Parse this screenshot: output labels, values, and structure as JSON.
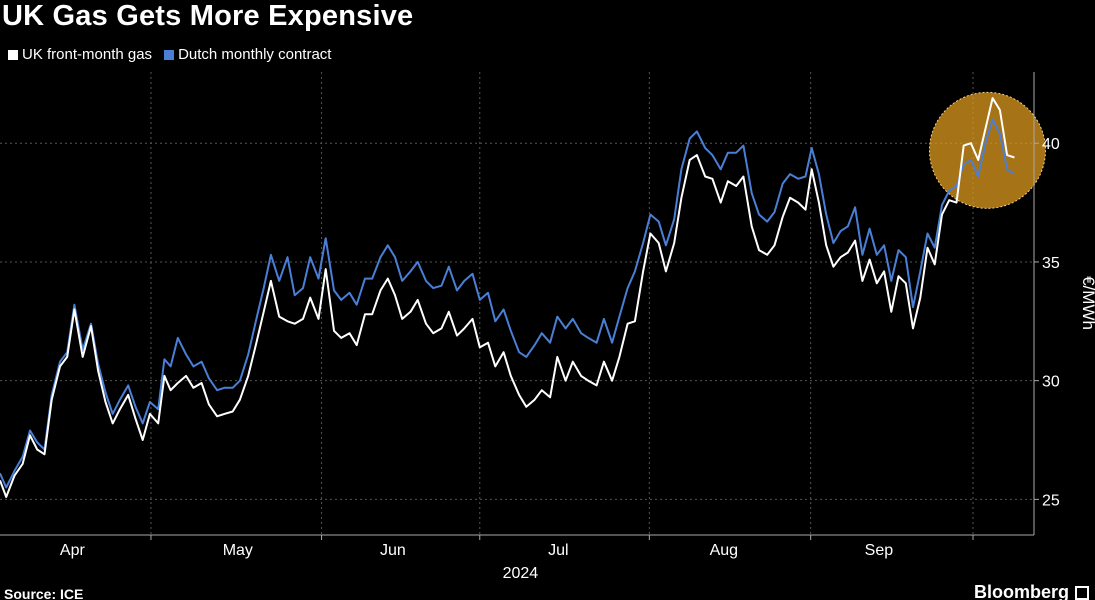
{
  "title": "UK Gas Gets More Expensive",
  "source": "Source: ICE",
  "brand": "Bloomberg",
  "colors": {
    "uk": "#ffffff",
    "dutch": "#4a7fd6",
    "highlight": "#e8a020",
    "grid": "#555555",
    "background": "#000000"
  },
  "chart_data": {
    "type": "line",
    "title": "UK Gas Gets More Expensive",
    "ylabel": "€/MWh",
    "xlabel": "2024",
    "ylim": [
      23.5,
      43
    ],
    "yticks": [
      25,
      30,
      35,
      40
    ],
    "xlim": [
      0,
      100
    ],
    "months": [
      {
        "label": "Apr",
        "pos": 7
      },
      {
        "label": "May",
        "pos": 23
      },
      {
        "label": "Jun",
        "pos": 38
      },
      {
        "label": "Jul",
        "pos": 54
      },
      {
        "label": "Aug",
        "pos": 70
      },
      {
        "label": "Sep",
        "pos": 85
      }
    ],
    "month_gridlines": [
      14.6,
      31.1,
      46.4,
      62.8,
      78.4,
      94.1
    ],
    "year_label": "2024",
    "legend_position": "top-left",
    "highlight": {
      "x": 95.5,
      "y": 39.7,
      "note": "highlighted recent surge"
    },
    "series": [
      {
        "name": "UK front-month gas",
        "color": "#ffffff",
        "points": [
          [
            0.0,
            25.8
          ],
          [
            0.6,
            25.1
          ],
          [
            1.4,
            26.0
          ],
          [
            2.2,
            26.5
          ],
          [
            2.9,
            27.7
          ],
          [
            3.6,
            27.1
          ],
          [
            4.3,
            26.9
          ],
          [
            5.0,
            29.2
          ],
          [
            5.8,
            30.6
          ],
          [
            6.5,
            31.0
          ],
          [
            7.2,
            33.0
          ],
          [
            8.0,
            31.0
          ],
          [
            8.8,
            32.3
          ],
          [
            9.5,
            30.4
          ],
          [
            10.2,
            29.1
          ],
          [
            10.9,
            28.2
          ],
          [
            11.6,
            28.8
          ],
          [
            12.4,
            29.4
          ],
          [
            13.1,
            28.4
          ],
          [
            13.8,
            27.5
          ],
          [
            14.5,
            28.6
          ],
          [
            15.3,
            28.2
          ],
          [
            15.9,
            30.2
          ],
          [
            16.5,
            29.6
          ],
          [
            17.2,
            29.9
          ],
          [
            18.0,
            30.2
          ],
          [
            18.7,
            29.7
          ],
          [
            19.5,
            29.9
          ],
          [
            20.2,
            29.0
          ],
          [
            21.0,
            28.5
          ],
          [
            21.7,
            28.6
          ],
          [
            22.5,
            28.7
          ],
          [
            23.2,
            29.2
          ],
          [
            24.0,
            30.2
          ],
          [
            24.8,
            31.6
          ],
          [
            25.5,
            32.9
          ],
          [
            26.2,
            34.2
          ],
          [
            27.0,
            32.7
          ],
          [
            27.8,
            32.5
          ],
          [
            28.5,
            32.4
          ],
          [
            29.3,
            32.6
          ],
          [
            30.0,
            33.5
          ],
          [
            30.8,
            32.6
          ],
          [
            31.5,
            34.7
          ],
          [
            32.3,
            32.1
          ],
          [
            33.0,
            31.8
          ],
          [
            33.8,
            32.0
          ],
          [
            34.5,
            31.5
          ],
          [
            35.3,
            32.8
          ],
          [
            36.0,
            32.8
          ],
          [
            36.8,
            33.8
          ],
          [
            37.5,
            34.3
          ],
          [
            38.2,
            33.6
          ],
          [
            38.9,
            32.6
          ],
          [
            39.7,
            32.9
          ],
          [
            40.4,
            33.4
          ],
          [
            41.2,
            32.4
          ],
          [
            41.9,
            32.0
          ],
          [
            42.7,
            32.2
          ],
          [
            43.4,
            32.9
          ],
          [
            44.2,
            31.9
          ],
          [
            44.9,
            32.2
          ],
          [
            45.7,
            32.6
          ],
          [
            46.4,
            31.4
          ],
          [
            47.2,
            31.6
          ],
          [
            47.9,
            30.6
          ],
          [
            48.7,
            31.2
          ],
          [
            49.4,
            30.2
          ],
          [
            50.2,
            29.4
          ],
          [
            50.9,
            28.9
          ],
          [
            51.7,
            29.2
          ],
          [
            52.4,
            29.6
          ],
          [
            53.2,
            29.3
          ],
          [
            53.9,
            31.0
          ],
          [
            54.7,
            30.0
          ],
          [
            55.4,
            30.8
          ],
          [
            56.2,
            30.2
          ],
          [
            56.9,
            30.0
          ],
          [
            57.7,
            29.8
          ],
          [
            58.4,
            30.8
          ],
          [
            59.2,
            30.0
          ],
          [
            59.9,
            31.0
          ],
          [
            60.7,
            32.4
          ],
          [
            61.4,
            32.5
          ],
          [
            62.2,
            34.6
          ],
          [
            62.9,
            36.2
          ],
          [
            63.7,
            35.8
          ],
          [
            64.4,
            34.6
          ],
          [
            65.2,
            35.8
          ],
          [
            65.9,
            37.7
          ],
          [
            66.7,
            39.3
          ],
          [
            67.4,
            39.5
          ],
          [
            68.2,
            38.6
          ],
          [
            68.9,
            38.5
          ],
          [
            69.7,
            37.5
          ],
          [
            70.4,
            38.4
          ],
          [
            71.2,
            38.2
          ],
          [
            71.9,
            38.6
          ],
          [
            72.7,
            36.5
          ],
          [
            73.4,
            35.5
          ],
          [
            74.2,
            35.3
          ],
          [
            74.9,
            35.7
          ],
          [
            75.7,
            36.9
          ],
          [
            76.4,
            37.7
          ],
          [
            77.2,
            37.5
          ],
          [
            77.9,
            37.2
          ],
          [
            78.5,
            38.9
          ],
          [
            79.2,
            37.5
          ],
          [
            79.9,
            35.7
          ],
          [
            80.6,
            34.8
          ],
          [
            81.3,
            35.2
          ],
          [
            82.0,
            35.4
          ],
          [
            82.7,
            35.9
          ],
          [
            83.4,
            34.2
          ],
          [
            84.1,
            35.1
          ],
          [
            84.8,
            34.1
          ],
          [
            85.5,
            34.6
          ],
          [
            86.2,
            32.9
          ],
          [
            86.9,
            34.4
          ],
          [
            87.6,
            34.1
          ],
          [
            88.3,
            32.2
          ],
          [
            89.0,
            33.5
          ],
          [
            89.7,
            35.6
          ],
          [
            90.4,
            34.9
          ],
          [
            91.1,
            37.0
          ],
          [
            91.8,
            37.6
          ],
          [
            92.5,
            37.5
          ],
          [
            93.2,
            39.9
          ],
          [
            93.9,
            40.0
          ],
          [
            94.6,
            39.3
          ],
          [
            95.3,
            40.6
          ],
          [
            96.0,
            41.9
          ],
          [
            96.7,
            41.4
          ],
          [
            97.4,
            39.5
          ],
          [
            98.1,
            39.4
          ]
        ]
      },
      {
        "name": "Dutch monthly contract",
        "color": "#4a7fd6",
        "points": [
          [
            0.0,
            26.1
          ],
          [
            0.6,
            25.5
          ],
          [
            1.4,
            26.2
          ],
          [
            2.2,
            26.8
          ],
          [
            2.9,
            27.9
          ],
          [
            3.6,
            27.4
          ],
          [
            4.3,
            27.1
          ],
          [
            5.0,
            29.4
          ],
          [
            5.8,
            30.8
          ],
          [
            6.5,
            31.2
          ],
          [
            7.2,
            33.2
          ],
          [
            8.0,
            31.3
          ],
          [
            8.8,
            32.4
          ],
          [
            9.5,
            30.7
          ],
          [
            10.2,
            29.5
          ],
          [
            10.9,
            28.6
          ],
          [
            11.6,
            29.2
          ],
          [
            12.4,
            29.8
          ],
          [
            13.1,
            28.9
          ],
          [
            13.8,
            28.2
          ],
          [
            14.5,
            29.1
          ],
          [
            15.3,
            28.8
          ],
          [
            15.9,
            30.9
          ],
          [
            16.5,
            30.6
          ],
          [
            17.2,
            31.8
          ],
          [
            18.0,
            31.1
          ],
          [
            18.7,
            30.6
          ],
          [
            19.5,
            30.8
          ],
          [
            20.2,
            30.1
          ],
          [
            21.0,
            29.6
          ],
          [
            21.7,
            29.7
          ],
          [
            22.5,
            29.7
          ],
          [
            23.2,
            30.0
          ],
          [
            24.0,
            31.1
          ],
          [
            24.8,
            32.6
          ],
          [
            25.5,
            33.9
          ],
          [
            26.2,
            35.3
          ],
          [
            27.0,
            34.2
          ],
          [
            27.8,
            35.2
          ],
          [
            28.5,
            33.6
          ],
          [
            29.3,
            33.9
          ],
          [
            30.0,
            35.2
          ],
          [
            30.8,
            34.3
          ],
          [
            31.5,
            36.0
          ],
          [
            32.3,
            33.8
          ],
          [
            33.0,
            33.4
          ],
          [
            33.8,
            33.7
          ],
          [
            34.5,
            33.2
          ],
          [
            35.3,
            34.3
          ],
          [
            36.0,
            34.3
          ],
          [
            36.8,
            35.2
          ],
          [
            37.5,
            35.7
          ],
          [
            38.2,
            35.2
          ],
          [
            38.9,
            34.2
          ],
          [
            39.7,
            34.6
          ],
          [
            40.4,
            35.0
          ],
          [
            41.2,
            34.2
          ],
          [
            41.9,
            33.9
          ],
          [
            42.7,
            34.0
          ],
          [
            43.4,
            34.8
          ],
          [
            44.2,
            33.8
          ],
          [
            44.9,
            34.2
          ],
          [
            45.7,
            34.5
          ],
          [
            46.4,
            33.4
          ],
          [
            47.2,
            33.7
          ],
          [
            47.9,
            32.5
          ],
          [
            48.7,
            33.0
          ],
          [
            49.4,
            32.1
          ],
          [
            50.2,
            31.2
          ],
          [
            50.9,
            31.0
          ],
          [
            51.7,
            31.5
          ],
          [
            52.4,
            32.0
          ],
          [
            53.2,
            31.6
          ],
          [
            53.9,
            32.7
          ],
          [
            54.7,
            32.2
          ],
          [
            55.4,
            32.6
          ],
          [
            56.2,
            32.0
          ],
          [
            56.9,
            31.8
          ],
          [
            57.7,
            31.6
          ],
          [
            58.4,
            32.6
          ],
          [
            59.2,
            31.6
          ],
          [
            59.9,
            32.7
          ],
          [
            60.7,
            33.9
          ],
          [
            61.4,
            34.6
          ],
          [
            62.2,
            35.8
          ],
          [
            62.9,
            37.0
          ],
          [
            63.7,
            36.7
          ],
          [
            64.4,
            35.7
          ],
          [
            65.2,
            36.8
          ],
          [
            65.9,
            38.9
          ],
          [
            66.7,
            40.2
          ],
          [
            67.4,
            40.5
          ],
          [
            68.2,
            39.8
          ],
          [
            68.9,
            39.5
          ],
          [
            69.7,
            38.9
          ],
          [
            70.4,
            39.6
          ],
          [
            71.2,
            39.6
          ],
          [
            71.9,
            39.9
          ],
          [
            72.7,
            37.9
          ],
          [
            73.4,
            37.0
          ],
          [
            74.2,
            36.7
          ],
          [
            74.9,
            37.1
          ],
          [
            75.7,
            38.3
          ],
          [
            76.4,
            38.7
          ],
          [
            77.2,
            38.5
          ],
          [
            77.9,
            38.6
          ],
          [
            78.5,
            39.8
          ],
          [
            79.2,
            38.7
          ],
          [
            79.9,
            37.0
          ],
          [
            80.6,
            35.8
          ],
          [
            81.3,
            36.3
          ],
          [
            82.0,
            36.5
          ],
          [
            82.7,
            37.3
          ],
          [
            83.4,
            35.3
          ],
          [
            84.1,
            36.4
          ],
          [
            84.8,
            35.3
          ],
          [
            85.5,
            35.7
          ],
          [
            86.2,
            34.2
          ],
          [
            86.9,
            35.5
          ],
          [
            87.6,
            35.2
          ],
          [
            88.3,
            33.1
          ],
          [
            89.0,
            34.6
          ],
          [
            89.7,
            36.2
          ],
          [
            90.4,
            35.6
          ],
          [
            91.1,
            37.4
          ],
          [
            91.8,
            38.0
          ],
          [
            92.5,
            38.2
          ],
          [
            93.2,
            39.1
          ],
          [
            93.9,
            39.3
          ],
          [
            94.6,
            38.6
          ],
          [
            95.3,
            40.0
          ],
          [
            96.0,
            41.0
          ],
          [
            96.7,
            40.4
          ],
          [
            97.4,
            38.9
          ],
          [
            98.1,
            38.7
          ]
        ]
      }
    ]
  }
}
